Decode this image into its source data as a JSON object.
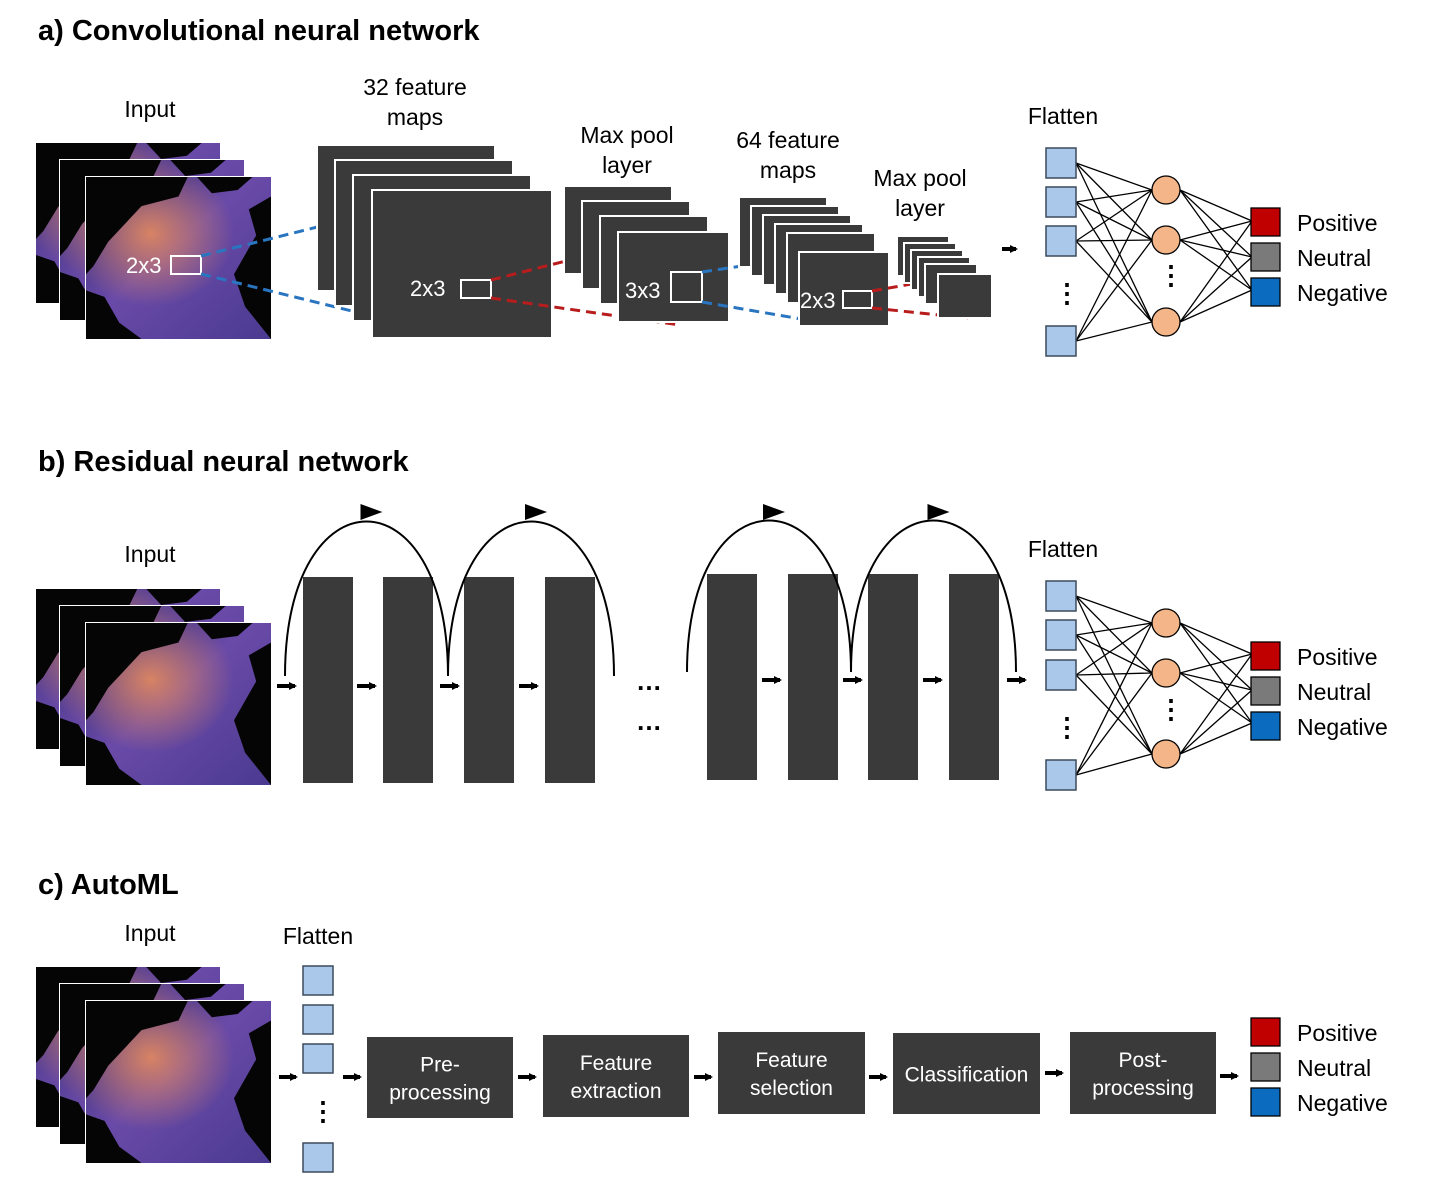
{
  "colors": {
    "block": "#3a3a3a",
    "node_square": "#a9c8ea",
    "node_square_stroke": "#3c4a5c",
    "node_circle": "#f4b688",
    "positive": "#c00000",
    "neutral": "#7a7a7a",
    "negative": "#0b6cbf",
    "dash_blue": "#2a75c0",
    "dash_red": "#b91c1c",
    "map_ocean_a": "#3a2d78",
    "map_ocean_b": "#8a5ab8",
    "map_warm": "#d77a5a",
    "map_land": "#050505"
  },
  "classes": [
    "Positive",
    "Neutral",
    "Negative"
  ],
  "panel_a": {
    "title": "a) Convolutional neural network",
    "input_label": "Input",
    "input_kernel": "2x3",
    "conv1_label_1": "32 feature",
    "conv1_label_2": "maps",
    "conv1_kernel": "2x3",
    "pool1_label_1": "Max pool",
    "pool1_label_2": "layer",
    "pool1_kernel": "3x3",
    "conv2_label_1": "64 feature",
    "conv2_label_2": "maps",
    "conv2_kernel": "2x3",
    "pool2_label_1": "Max pool",
    "pool2_label_2": "layer",
    "flatten_label": "Flatten",
    "vdots": "⋮"
  },
  "panel_b": {
    "title": "b) Residual neural network",
    "input_label": "Input",
    "flatten_label": "Flatten",
    "ellipsis": "…",
    "vdots": "⋮"
  },
  "panel_c": {
    "title": "c) AutoML",
    "input_label": "Input",
    "flatten_label": "Flatten",
    "vdots": "⋮",
    "steps": [
      {
        "line1": "Pre-",
        "line2": "processing"
      },
      {
        "line1": "Feature",
        "line2": "extraction"
      },
      {
        "line1": "Feature",
        "line2": "selection"
      },
      {
        "line1": "Classification",
        "line2": ""
      },
      {
        "line1": "Post-",
        "line2": "processing"
      }
    ]
  }
}
